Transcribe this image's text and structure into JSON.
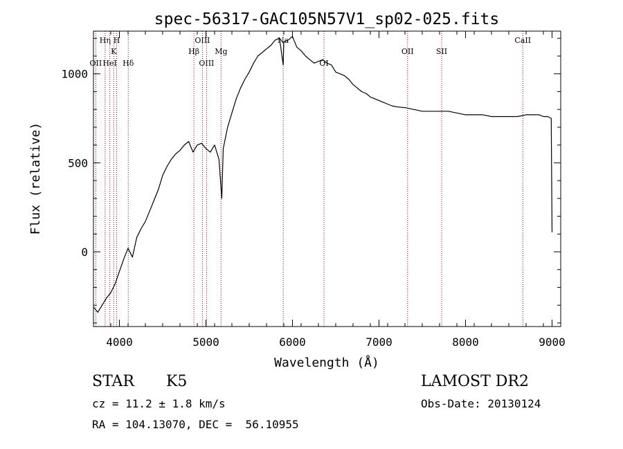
{
  "chart_data": {
    "type": "line",
    "title": "spec-56317-GAC105N57V1_sp02-025.fits",
    "xlabel": "Wavelength (Å)",
    "ylabel": "Flux (relative)",
    "xlim": [
      3700,
      9100
    ],
    "ylim": [
      -420,
      1240
    ],
    "x_ticks": [
      4000,
      5000,
      6000,
      7000,
      8000,
      9000
    ],
    "x_tick_labels": [
      "4000",
      "5000",
      "6000",
      "7000",
      "8000",
      "9000"
    ],
    "y_ticks": [
      0,
      500,
      1000
    ],
    "y_tick_labels": [
      "0",
      "500",
      "1000"
    ],
    "grid": false,
    "line_color": "#000000",
    "marker_color": "#990000",
    "series": [
      {
        "x": [
          3700,
          3750,
          3800,
          3850,
          3900,
          3950,
          4000,
          4050,
          4100,
          4150,
          4200,
          4250,
          4300,
          4350,
          4400,
          4450,
          4500,
          4550,
          4600,
          4650,
          4700,
          4750,
          4800,
          4850,
          4900,
          4950,
          5000,
          5050,
          5100,
          5150,
          5183,
          5200,
          5250,
          5300,
          5350,
          5400,
          5450,
          5500,
          5550,
          5600,
          5650,
          5700,
          5750,
          5800,
          5850,
          5893,
          5900,
          5950,
          6000,
          6050,
          6100,
          6150,
          6200,
          6250,
          6300,
          6350,
          6400,
          6450,
          6500,
          6550,
          6600,
          6650,
          6700,
          6750,
          6800,
          6850,
          6900,
          6950,
          7000,
          7050,
          7100,
          7150,
          7200,
          7300,
          7400,
          7500,
          7600,
          7700,
          7800,
          7900,
          8000,
          8100,
          8200,
          8300,
          8400,
          8500,
          8600,
          8700,
          8800,
          8850,
          8900,
          8950,
          8990,
          9000
        ],
        "y": [
          -310,
          -340,
          -300,
          -260,
          -230,
          -180,
          -110,
          -40,
          20,
          -30,
          80,
          130,
          170,
          230,
          290,
          350,
          430,
          480,
          520,
          550,
          570,
          600,
          620,
          560,
          600,
          610,
          580,
          560,
          600,
          520,
          300,
          580,
          700,
          780,
          860,
          920,
          970,
          1010,
          1060,
          1100,
          1120,
          1140,
          1160,
          1190,
          1200,
          1050,
          1180,
          1190,
          1210,
          1150,
          1130,
          1100,
          1080,
          1060,
          1070,
          1080,
          1060,
          1050,
          1010,
          1000,
          990,
          970,
          940,
          920,
          900,
          890,
          870,
          860,
          850,
          840,
          830,
          820,
          815,
          810,
          800,
          790,
          790,
          790,
          790,
          780,
          770,
          770,
          770,
          760,
          760,
          760,
          760,
          770,
          770,
          770,
          760,
          760,
          750,
          110
        ]
      }
    ],
    "line_markers": [
      {
        "label": "OII",
        "wavelength": 3727,
        "row": 3
      },
      {
        "label": "Hη",
        "wavelength": 3835,
        "row": 1
      },
      {
        "label": "HeI",
        "wavelength": 3889,
        "row": 3
      },
      {
        "label": "K",
        "wavelength": 3934,
        "row": 2
      },
      {
        "label": "H",
        "wavelength": 3968,
        "row": 1
      },
      {
        "label": "Hδ",
        "wavelength": 4102,
        "row": 3
      },
      {
        "label": "Hβ",
        "wavelength": 4861,
        "row": 2
      },
      {
        "label": "OIII",
        "wavelength": 4959,
        "row": 1
      },
      {
        "label": "OIII",
        "wavelength": 5007,
        "row": 3
      },
      {
        "label": "Mg",
        "wavelength": 5175,
        "row": 2
      },
      {
        "label": "Na",
        "wavelength": 5893,
        "row": 1
      },
      {
        "label": "OI",
        "wavelength": 6364,
        "row": 3
      },
      {
        "label": "OII",
        "wavelength": 7330,
        "row": 2
      },
      {
        "label": "SII",
        "wavelength": 7724,
        "row": 2
      },
      {
        "label": "CaII",
        "wavelength": 8662,
        "row": 1
      }
    ]
  },
  "info": {
    "class": "STAR",
    "subclass": "K5",
    "cz": "cz = 11.2 ± 1.8 km/s",
    "radec": "RA = 104.13070, DEC =  56.10955",
    "survey": "LAMOST DR2",
    "obs_date": "Obs-Date: 20130124"
  }
}
